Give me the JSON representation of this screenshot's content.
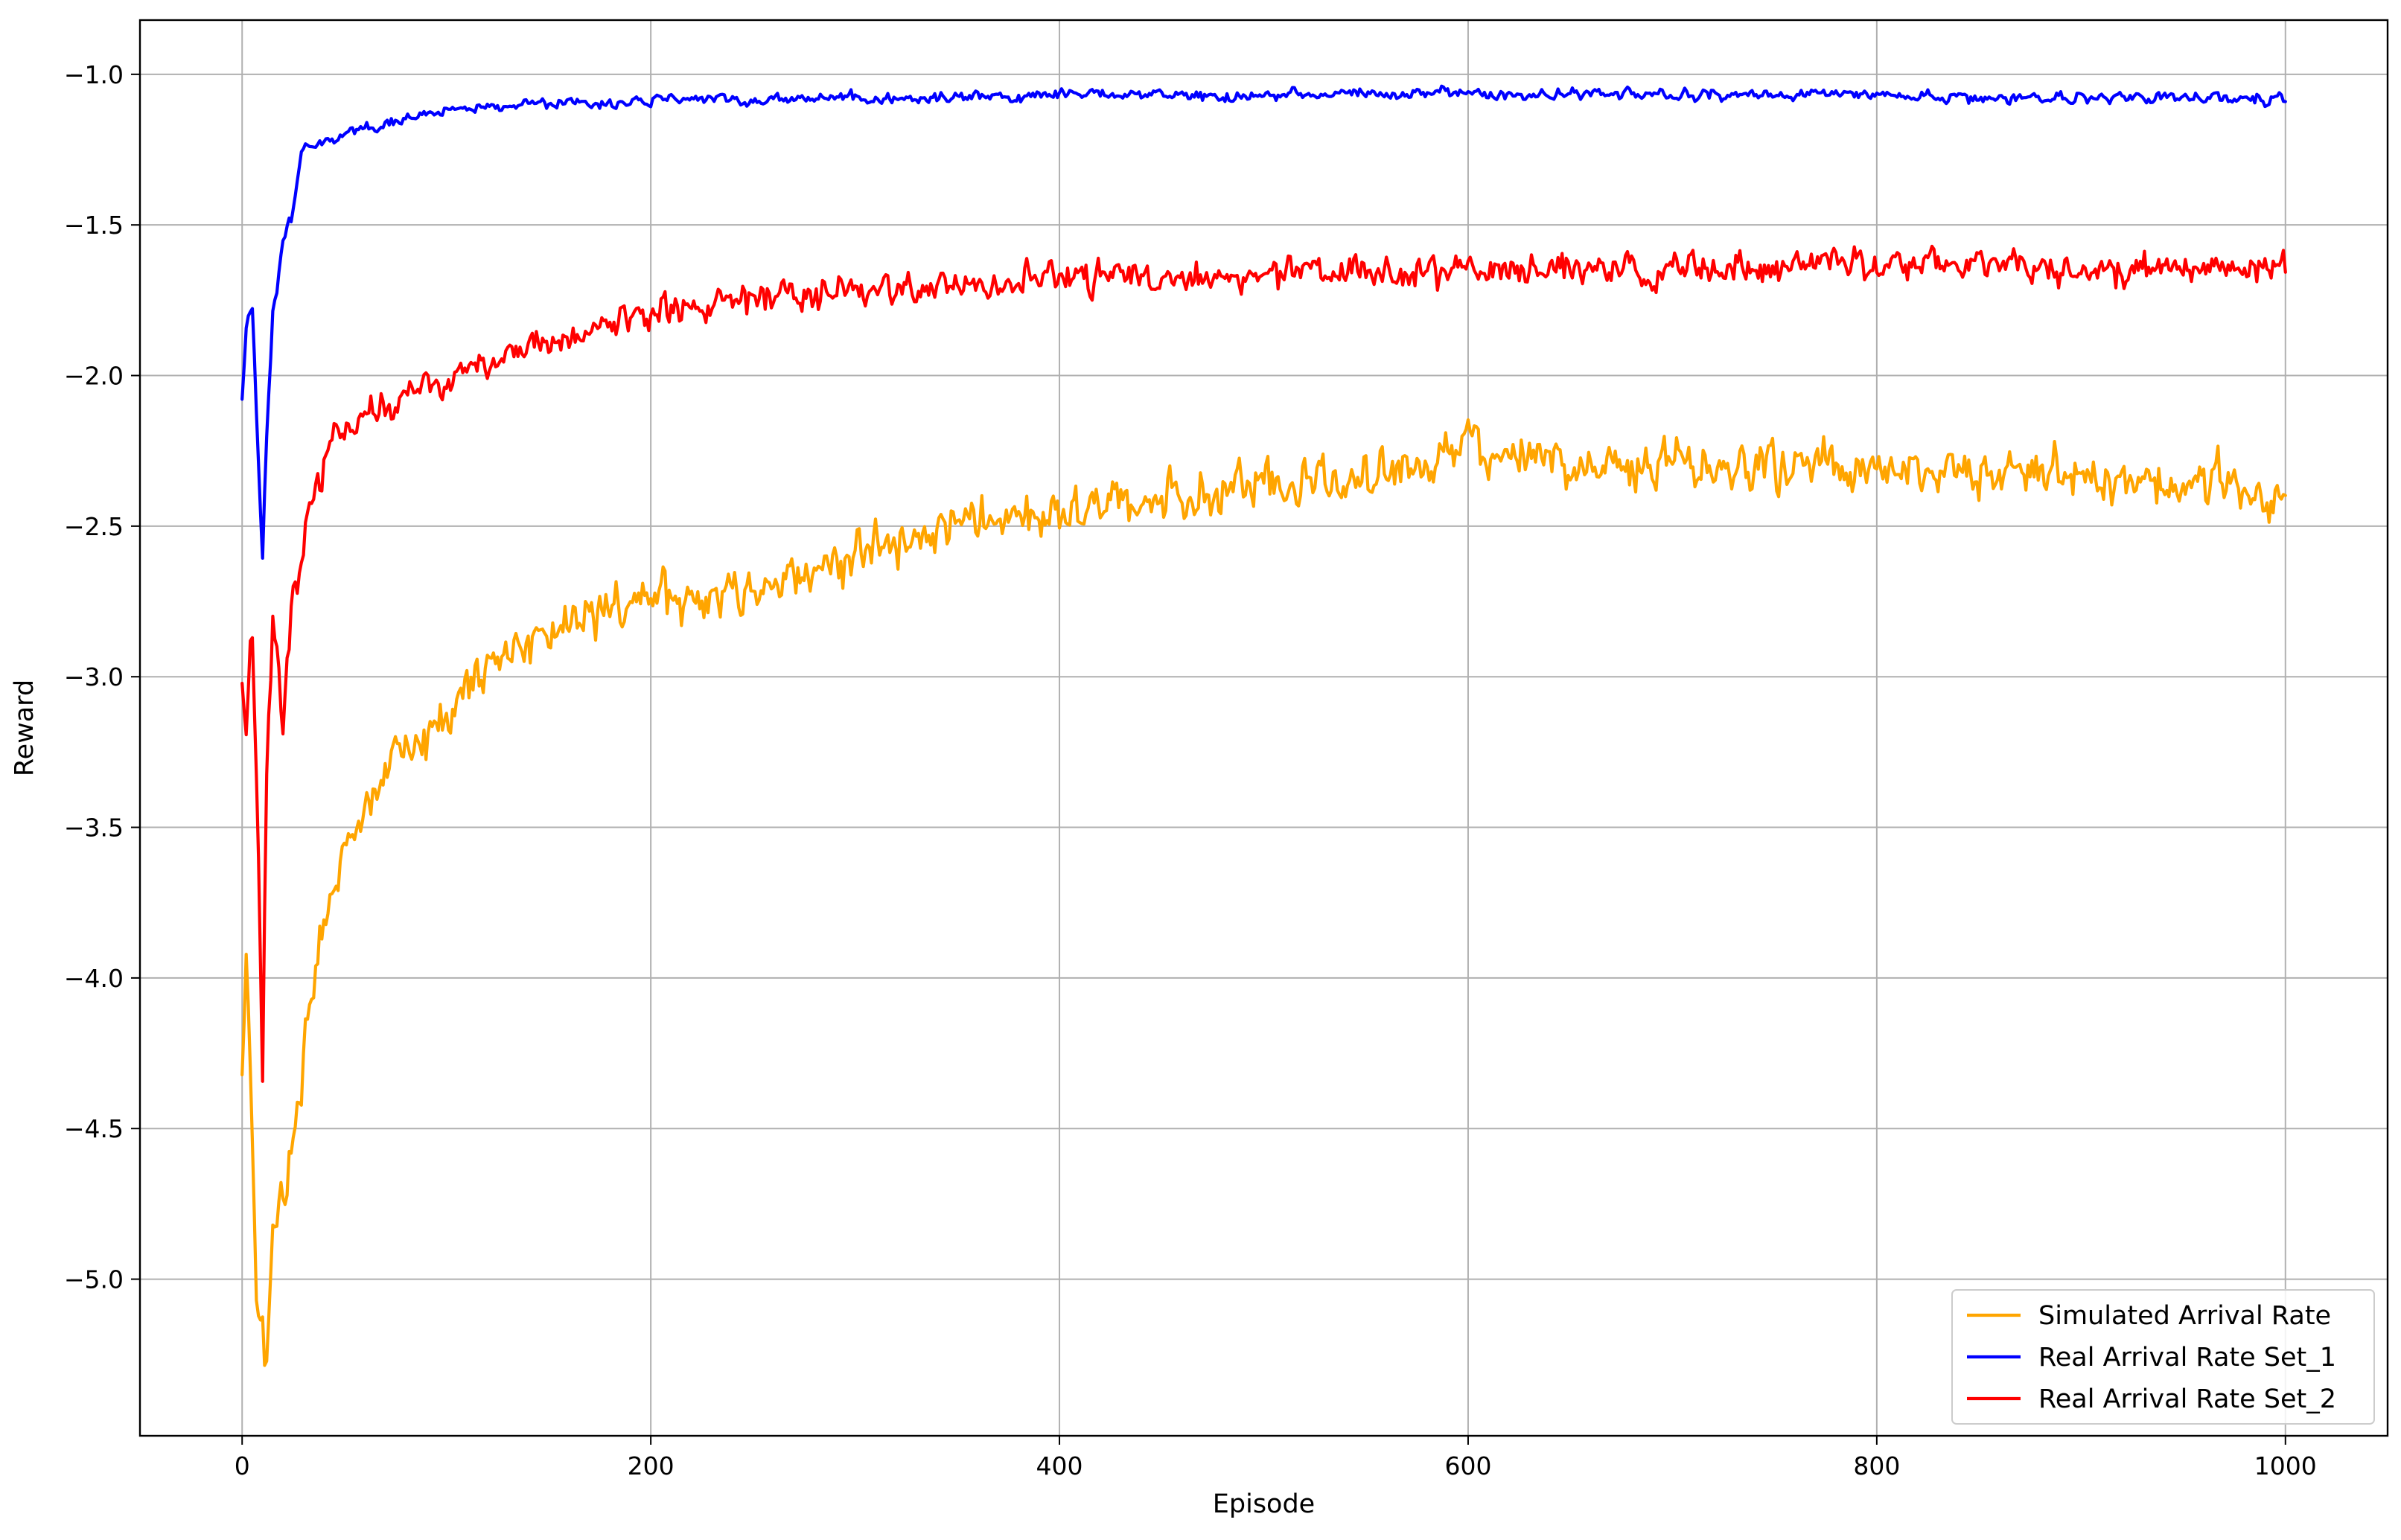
{
  "chart_data": {
    "type": "line",
    "title": "",
    "xlabel": "Episode",
    "ylabel": "Reward",
    "xlim": [
      -50,
      1050
    ],
    "ylim": [
      -5.52,
      -0.82
    ],
    "x_ticks": [
      0,
      200,
      400,
      600,
      800,
      1000
    ],
    "x_tick_labels": [
      "0",
      "200",
      "400",
      "600",
      "800",
      "1000"
    ],
    "y_ticks": [
      -5.0,
      -4.5,
      -4.0,
      -3.5,
      -3.0,
      -2.5,
      -2.0,
      -1.5,
      -1.0
    ],
    "y_tick_labels": [
      "−5.0",
      "−4.5",
      "−4.0",
      "−3.5",
      "−3.0",
      "−2.5",
      "−2.0",
      "−1.5",
      "−1.0"
    ],
    "grid": true,
    "legend_position": "lower-right",
    "x_range": [
      0,
      1000
    ],
    "series": [
      {
        "name": "Simulated Arrival Rate",
        "color": "#ffa500",
        "noise": 0.11,
        "anchors": [
          [
            0,
            -4.35
          ],
          [
            2,
            -3.95
          ],
          [
            5,
            -4.55
          ],
          [
            8,
            -5.2
          ],
          [
            12,
            -5.3
          ],
          [
            15,
            -4.9
          ],
          [
            20,
            -4.7
          ],
          [
            25,
            -4.5
          ],
          [
            30,
            -4.2
          ],
          [
            40,
            -3.8
          ],
          [
            50,
            -3.6
          ],
          [
            60,
            -3.45
          ],
          [
            75,
            -3.3
          ],
          [
            90,
            -3.2
          ],
          [
            100,
            -3.1
          ],
          [
            120,
            -2.95
          ],
          [
            150,
            -2.85
          ],
          [
            200,
            -2.75
          ],
          [
            250,
            -2.7
          ],
          [
            300,
            -2.6
          ],
          [
            350,
            -2.5
          ],
          [
            400,
            -2.45
          ],
          [
            450,
            -2.4
          ],
          [
            500,
            -2.38
          ],
          [
            550,
            -2.35
          ],
          [
            600,
            -2.25
          ],
          [
            650,
            -2.3
          ],
          [
            700,
            -2.3
          ],
          [
            750,
            -2.28
          ],
          [
            800,
            -2.3
          ],
          [
            850,
            -2.32
          ],
          [
            900,
            -2.35
          ],
          [
            950,
            -2.35
          ],
          [
            1000,
            -2.4
          ]
        ]
      },
      {
        "name": "Real Arrival Rate Set_1",
        "color": "#0000ff",
        "noise": 0.025,
        "anchors": [
          [
            0,
            -2.1
          ],
          [
            2,
            -1.85
          ],
          [
            5,
            -1.75
          ],
          [
            8,
            -2.3
          ],
          [
            10,
            -2.6
          ],
          [
            12,
            -2.2
          ],
          [
            15,
            -1.8
          ],
          [
            20,
            -1.55
          ],
          [
            25,
            -1.45
          ],
          [
            30,
            -1.25
          ],
          [
            40,
            -1.22
          ],
          [
            50,
            -1.2
          ],
          [
            60,
            -1.17
          ],
          [
            80,
            -1.15
          ],
          [
            100,
            -1.12
          ],
          [
            150,
            -1.1
          ],
          [
            200,
            -1.09
          ],
          [
            300,
            -1.08
          ],
          [
            400,
            -1.07
          ],
          [
            500,
            -1.07
          ],
          [
            600,
            -1.06
          ],
          [
            700,
            -1.07
          ],
          [
            800,
            -1.07
          ],
          [
            900,
            -1.08
          ],
          [
            1000,
            -1.08
          ]
        ]
      },
      {
        "name": "Real Arrival Rate Set_2",
        "color": "#ff0000",
        "noise": 0.075,
        "anchors": [
          [
            0,
            -3.05
          ],
          [
            2,
            -3.2
          ],
          [
            5,
            -2.85
          ],
          [
            8,
            -3.6
          ],
          [
            10,
            -4.45
          ],
          [
            12,
            -3.3
          ],
          [
            15,
            -2.75
          ],
          [
            20,
            -3.1
          ],
          [
            25,
            -2.7
          ],
          [
            30,
            -2.55
          ],
          [
            40,
            -2.3
          ],
          [
            50,
            -2.15
          ],
          [
            70,
            -2.1
          ],
          [
            100,
            -2.0
          ],
          [
            150,
            -1.9
          ],
          [
            200,
            -1.8
          ],
          [
            250,
            -1.75
          ],
          [
            300,
            -1.72
          ],
          [
            350,
            -1.7
          ],
          [
            400,
            -1.68
          ],
          [
            500,
            -1.66
          ],
          [
            600,
            -1.65
          ],
          [
            700,
            -1.65
          ],
          [
            800,
            -1.63
          ],
          [
            900,
            -1.64
          ],
          [
            1000,
            -1.65
          ]
        ]
      }
    ]
  }
}
